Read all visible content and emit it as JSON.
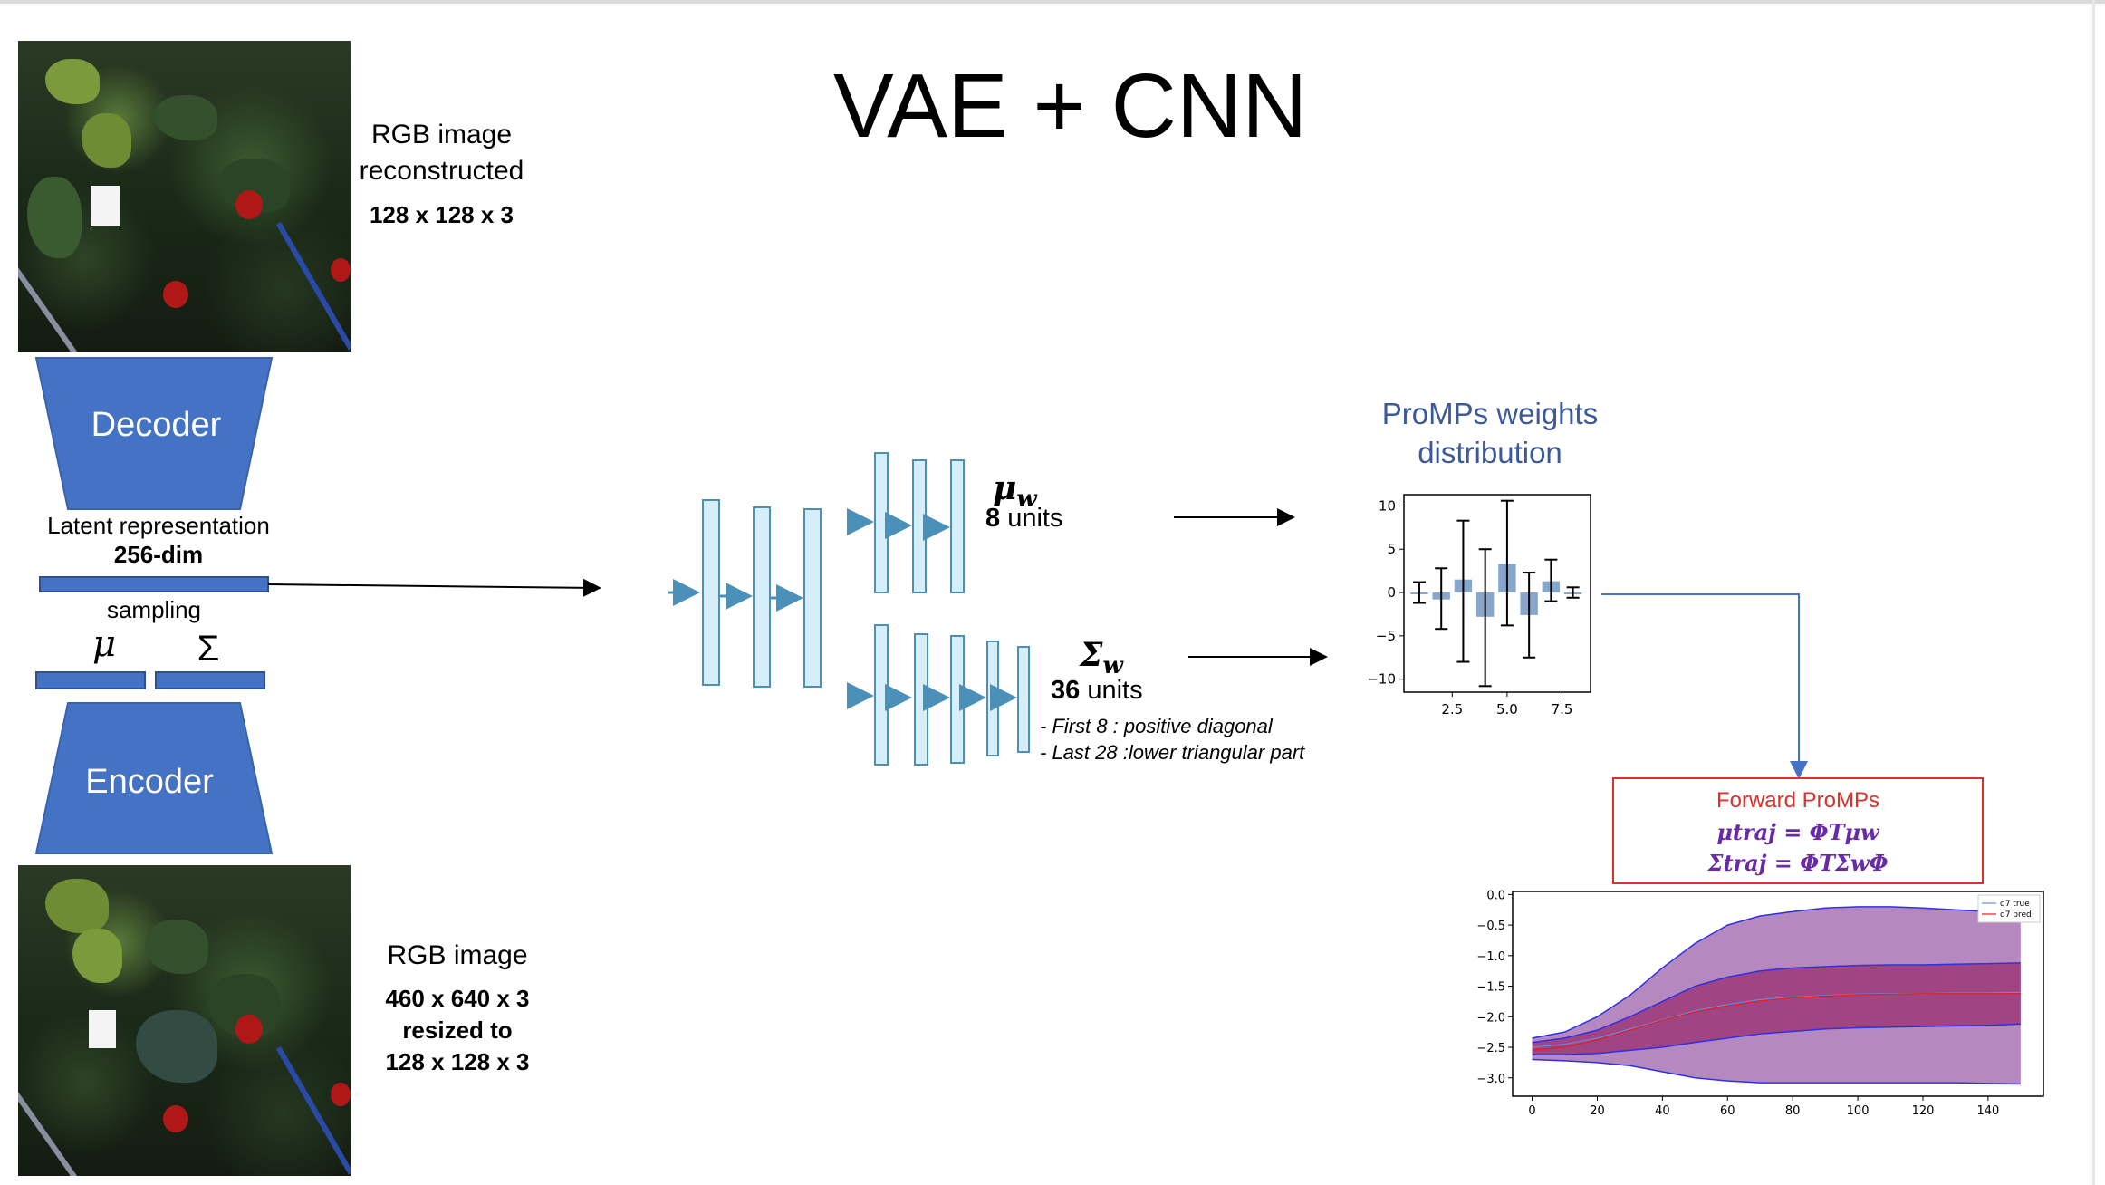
{
  "title": "VAE + CNN",
  "top_image": {
    "caption_line1": "RGB image",
    "caption_line2": "reconstructed",
    "size": "128 x 128 x 3"
  },
  "decoder_label": "Decoder",
  "encoder_label": "Encoder",
  "latent": {
    "label": "Latent representation",
    "dim": "256-dim",
    "sampling": "sampling",
    "mu_symbol": "μ",
    "sigma_symbol": "Σ"
  },
  "bottom_image": {
    "caption": "RGB image",
    "size_line1": "460 x 640 x 3",
    "size_line2": "resized to",
    "size_line3": "128 x 128 x 3"
  },
  "mu_head": {
    "symbol": "μ",
    "subscript": "w",
    "units_num": "8",
    "units_word": " units"
  },
  "sigma_head": {
    "symbol": "Σ",
    "subscript": "w",
    "units_num": "36",
    "units_word": " units",
    "note1": "- First 8 : positive diagonal",
    "note2": "- Last 28 :lower triangular part"
  },
  "promps": {
    "title_line1": "ProMPs weights",
    "title_line2": "distribution"
  },
  "forward": {
    "title": "Forward ProMPs",
    "eq1": "μtraj = ΦTμw",
    "eq2": "Σtraj = ΦTΣwΦ"
  },
  "colors": {
    "block_blue": "#4472c4",
    "layer_fill": "#d6eefa",
    "layer_stroke": "#4a90b8",
    "promp_title": "#3c5a9a",
    "forward_red": "#e0302a",
    "forward_purple": "#6a2aa8",
    "band_outer": "#a874b4",
    "band_inner": "#a0307a"
  },
  "chart_data": [
    {
      "type": "bar",
      "title": "",
      "x": [
        1,
        2,
        3,
        4,
        5,
        6,
        7,
        8
      ],
      "values": [
        0.0,
        -0.8,
        1.5,
        -2.8,
        3.3,
        -2.6,
        1.3,
        0.0
      ],
      "error_low": [
        -1.2,
        -4.2,
        -8.0,
        -10.8,
        -3.8,
        -7.5,
        -1.0,
        -0.6
      ],
      "error_high": [
        1.2,
        2.8,
        8.3,
        5.0,
        10.6,
        2.3,
        3.8,
        0.6
      ],
      "xticks": [
        "2.5",
        "5.0",
        "7.5"
      ],
      "yticks": [
        "10",
        "5",
        "0",
        "−5",
        "−10"
      ],
      "xlim": [
        0.3,
        8.8
      ],
      "ylim": [
        -11.5,
        11.3
      ]
    },
    {
      "type": "line",
      "title": "",
      "x": [
        0,
        10,
        20,
        30,
        40,
        50,
        60,
        70,
        80,
        90,
        100,
        110,
        120,
        130,
        140,
        150
      ],
      "series": [
        {
          "name": "q7 true",
          "values": [
            -2.5,
            -2.45,
            -2.35,
            -2.2,
            -2.05,
            -1.9,
            -1.8,
            -1.72,
            -1.68,
            -1.65,
            -1.63,
            -1.62,
            -1.62,
            -1.61,
            -1.61,
            -1.6
          ]
        },
        {
          "name": "q7 pred",
          "values": [
            -2.55,
            -2.5,
            -2.38,
            -2.22,
            -2.06,
            -1.92,
            -1.82,
            -1.74,
            -1.69,
            -1.66,
            -1.64,
            -1.63,
            -1.62,
            -1.62,
            -1.62,
            -1.62
          ]
        }
      ],
      "band_outer_upper": [
        -2.35,
        -2.25,
        -2.0,
        -1.65,
        -1.2,
        -0.8,
        -0.5,
        -0.35,
        -0.28,
        -0.22,
        -0.2,
        -0.2,
        -0.22,
        -0.25,
        -0.28,
        -0.3
      ],
      "band_outer_lower": [
        -2.7,
        -2.72,
        -2.75,
        -2.8,
        -2.9,
        -3.0,
        -3.05,
        -3.08,
        -3.08,
        -3.08,
        -3.08,
        -3.08,
        -3.08,
        -3.08,
        -3.09,
        -3.1
      ],
      "band_inner_upper": [
        -2.42,
        -2.35,
        -2.22,
        -2.0,
        -1.75,
        -1.5,
        -1.35,
        -1.25,
        -1.2,
        -1.18,
        -1.16,
        -1.15,
        -1.15,
        -1.14,
        -1.13,
        -1.12
      ],
      "band_inner_lower": [
        -2.62,
        -2.62,
        -2.6,
        -2.55,
        -2.5,
        -2.42,
        -2.35,
        -2.28,
        -2.24,
        -2.2,
        -2.18,
        -2.17,
        -2.16,
        -2.15,
        -2.14,
        -2.12
      ],
      "xticks": [
        "0",
        "20",
        "40",
        "60",
        "80",
        "100",
        "120",
        "140"
      ],
      "yticks": [
        "0.0",
        "−0.5",
        "−1.0",
        "−1.5",
        "−2.0",
        "−2.5",
        "−3.0"
      ],
      "xlim": [
        -6,
        157
      ],
      "ylim": [
        -3.3,
        0.05
      ],
      "legend_position": "top-right"
    }
  ]
}
